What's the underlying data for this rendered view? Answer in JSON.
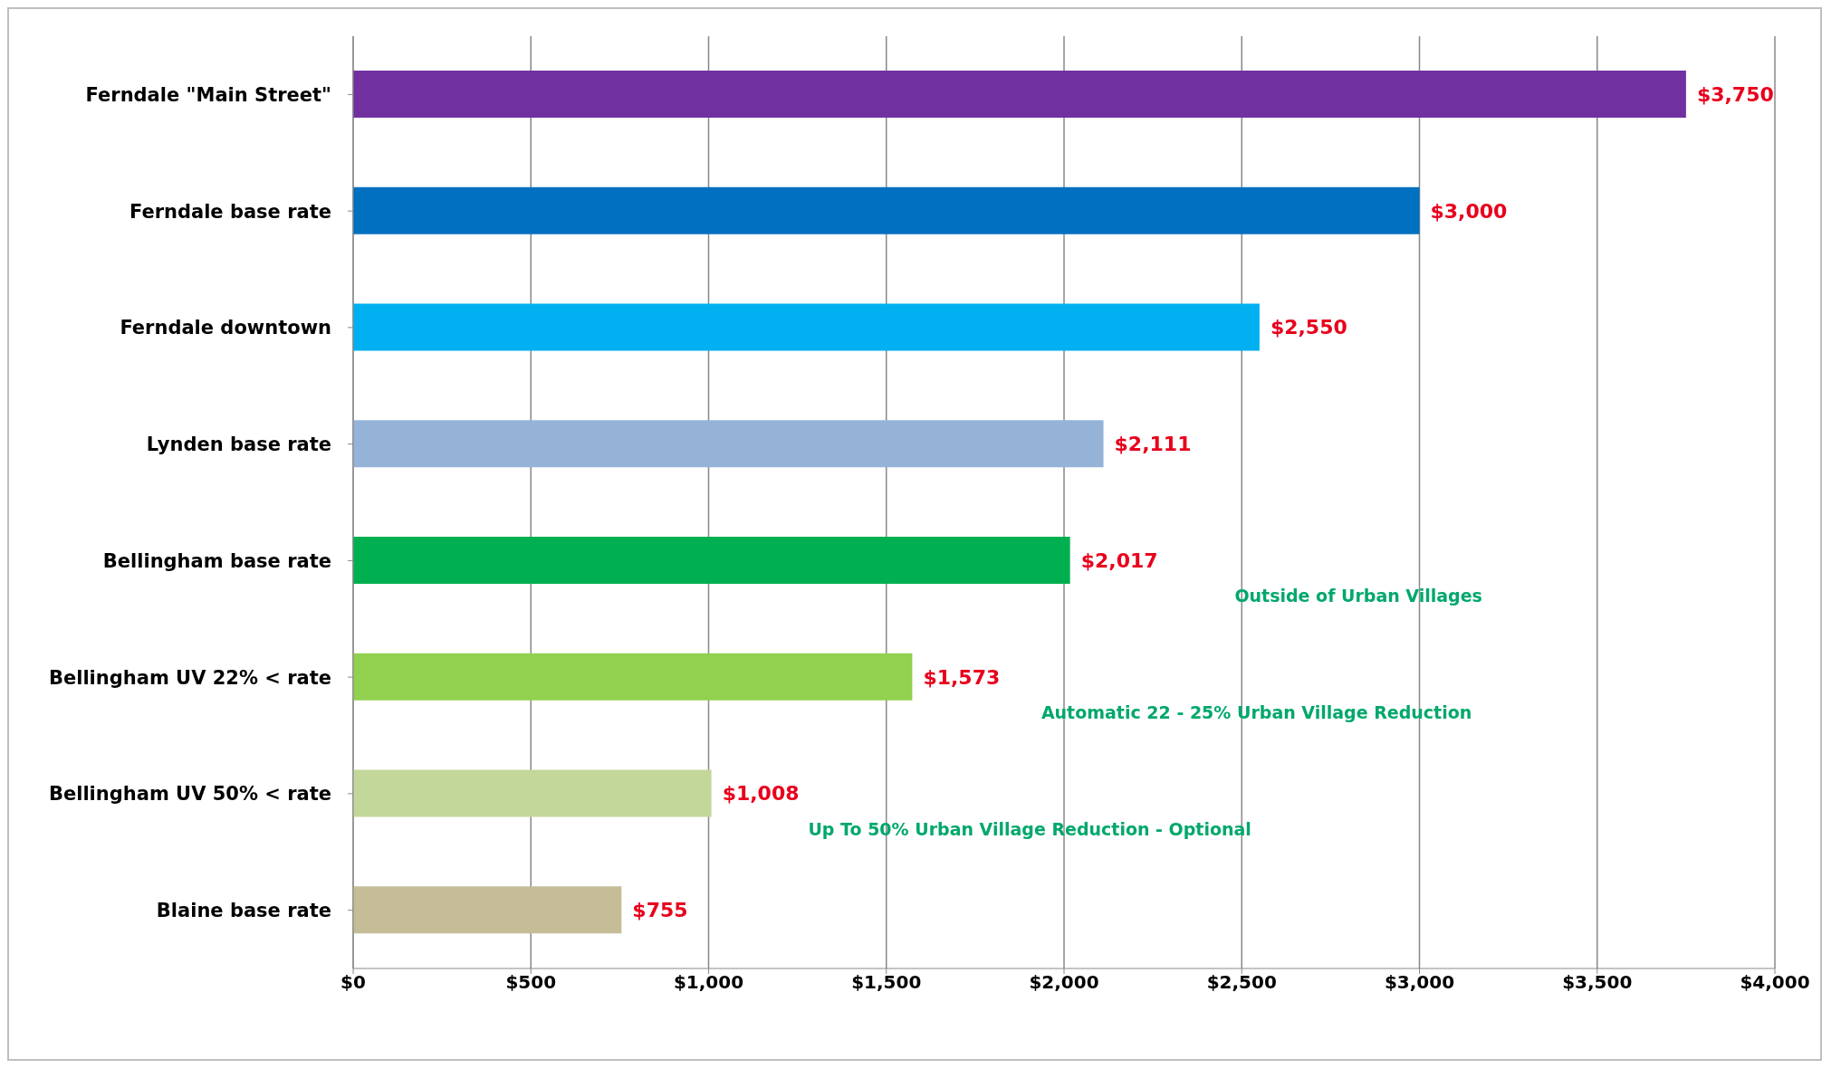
{
  "chart_data": {
    "type": "bar",
    "orientation": "horizontal",
    "categories": [
      "Ferndale \"Main Street\"",
      "Ferndale base rate",
      "Ferndale downtown",
      "Lynden base rate",
      "Bellingham base rate",
      "Bellingham UV 22% < rate",
      "Bellingham UV 50% < rate",
      "Blaine base rate"
    ],
    "values": [
      3750,
      3000,
      2550,
      2111,
      2017,
      1573,
      1008,
      755
    ],
    "colors": [
      "#7030a0",
      "#0070c0",
      "#00b0f0",
      "#95b3d7",
      "#00b050",
      "#92d050",
      "#c4d79b",
      "#c4bd97"
    ],
    "value_labels": [
      "$3,750",
      "$3,000",
      "$2,550",
      "$2,111",
      "$2,017",
      "$1,573",
      "$1,008",
      "$755"
    ],
    "xlim": [
      0,
      4000
    ],
    "xticks": [
      {
        "value": 0,
        "label": "$0"
      },
      {
        "value": 500,
        "label": "$500"
      },
      {
        "value": 1000,
        "label": "$1,000"
      },
      {
        "value": 1500,
        "label": "$1,500"
      },
      {
        "value": 2000,
        "label": "$2,000"
      },
      {
        "value": 2500,
        "label": "$2,500"
      },
      {
        "value": 3000,
        "label": "$3,000"
      },
      {
        "value": 3500,
        "label": "$3,500"
      },
      {
        "value": 4000,
        "label": "$4,000"
      }
    ],
    "grid": "x",
    "legend": false,
    "annotations": [
      "Outside of Urban Villages",
      "Automatic 22 - 25% Urban Village Reduction",
      "Up To 50% Urban Village Reduction - Optional"
    ]
  }
}
